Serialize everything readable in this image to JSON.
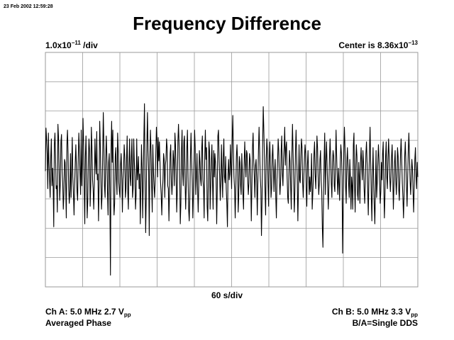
{
  "timestamp": "23 Feb 2002 12:59:28",
  "chart_data": {
    "type": "line",
    "title": "Frequency Difference",
    "y_scale": {
      "mantissa": "1.0x10",
      "exponent": "−11",
      "unit": " /div"
    },
    "center": {
      "prefix": "Center is 8.36x10",
      "exponent": "−13"
    },
    "x_scale_label": "60 s/div",
    "x_divisions": 10,
    "y_divisions": 8,
    "xlim": [
      0,
      600
    ],
    "ylim": [
      -4,
      4
    ],
    "grid": true,
    "series": [
      {
        "values": [
          -0.05,
          1.42,
          1.05,
          0.55,
          -0.65,
          1.25,
          0.25,
          -0.35,
          -0.95,
          0.45,
          1.05,
          -0.55,
          0.05,
          -0.55,
          -1.95,
          0.85,
          1.25,
          0.45,
          -0.65,
          -0.55,
          -1.45,
          1.55,
          1.1,
          0.05,
          -1.05,
          -0.45,
          0.95,
          1.2,
          -0.05,
          -0.45,
          -1.35,
          -0.85,
          0.35,
          0.25,
          -0.55,
          -1.65,
          0.85,
          1.35,
          0.55,
          -0.65,
          -1.15,
          -0.75,
          0.55,
          -0.95,
          0.05,
          1.1,
          -0.25,
          -0.85,
          -1.55,
          -0.55,
          0.25,
          0.85,
          0.05,
          -0.75,
          -1.05,
          0.35,
          1.25,
          0.65,
          -0.15,
          -0.85,
          1.35,
          -0.55,
          0.25,
          1.75,
          0.85,
          -0.65,
          -1.85,
          0.45,
          1.15,
          -0.15,
          -1.65,
          -1.05,
          0.35,
          1.05,
          0.65,
          -1.25,
          -0.55,
          1.45,
          0.75,
          -0.35,
          -0.65,
          -1.35,
          -0.55,
          1.05,
          0.25,
          -0.15,
          1.3,
          -0.35,
          -0.15,
          -1.75,
          -0.45,
          1.65,
          0.85,
          -0.35,
          -1.35,
          -0.85,
          0.55,
          1.95,
          0.85,
          -0.55,
          -0.95,
          0.35,
          1.15,
          0.45,
          -0.75,
          -1.55,
          0.25,
          0.55,
          -0.95,
          -3.6,
          0.65,
          1.65,
          0.25,
          1.35,
          -0.75,
          -1.55,
          -1.15,
          0.45,
          0.75,
          -0.35,
          -0.85,
          1.25,
          0.65,
          -0.45,
          -0.75,
          -0.95,
          0.15,
          0.55,
          -0.25,
          -1.45,
          -0.35,
          0.05,
          0.85,
          0.45,
          -0.95,
          -0.65,
          0.35,
          1.15,
          -0.75,
          -1.35,
          0.15,
          1.05,
          -0.25,
          -0.55,
          0.45,
          1.05,
          -0.95,
          -0.65,
          1.05,
          0.25,
          -0.25,
          -1.35,
          -0.85,
          1.05,
          -0.35,
          -0.05,
          0.45,
          -0.65,
          -0.15,
          -1.85,
          -0.55,
          0.85,
          0.05,
          -1.65,
          -0.45,
          1.1,
          2.25,
          -0.35,
          -2.15,
          -0.95,
          0.85,
          1.95,
          0.65,
          -0.05,
          -2.25,
          0.35,
          1.35,
          0.65,
          -0.55,
          -1.45,
          0.85,
          -0.05,
          -0.55,
          -0.95,
          -0.35,
          0.55,
          1.45,
          0.95,
          -0.25,
          1.1,
          0.3,
          0.95,
          0.25,
          -0.45,
          -0.85,
          -1.55,
          -0.75,
          -0.35,
          0.55,
          0.35,
          -0.95,
          0.15,
          0.35,
          1.05,
          0.75,
          -0.55,
          -0.65,
          -1.75,
          -0.65,
          0.55,
          0.85,
          -0.35,
          -0.85,
          -0.35,
          0.65,
          0.35,
          -0.55,
          1.25,
          0.85,
          -0.15,
          -1.45,
          -0.75,
          0.95,
          1.55,
          0.85,
          -0.15,
          -1.85,
          -1.15,
          0.65,
          1.35,
          -0.15,
          -0.55,
          0.95,
          1.15,
          -0.35,
          -1.35,
          -0.55,
          0.75,
          1.35,
          -0.25,
          -1.35,
          -1.75,
          -0.95,
          0.45,
          1.25,
          0.35,
          -0.35,
          -1.65,
          -0.85,
          0.25,
          1.35,
          0.75,
          -0.85,
          -0.25,
          0.55,
          -0.65,
          -1.45,
          -0.55,
          0.65,
          0.25,
          -0.35,
          -0.55,
          0.75,
          1.15,
          -0.35,
          -0.65,
          -1.65,
          0.45,
          1.35,
          0.35,
          0.75,
          -1.25,
          -1.75,
          -0.35,
          0.95,
          0.65,
          -1.35,
          -0.55,
          0.35,
          0.85,
          -0.45,
          -1.35,
          0.65,
          -0.25,
          0.55,
          0.25,
          -0.35,
          -1.85,
          -0.65,
          1.15,
          1.35,
          0.45,
          -0.25,
          -1.05,
          -0.35,
          0.85,
          -0.15,
          -0.95,
          0.45,
          1.05,
          -0.25,
          -0.45,
          0.45,
          -0.65,
          -1.15,
          -1.95,
          -0.15,
          0.35,
          -0.35,
          -0.15,
          0.85,
          0.05,
          -0.65,
          1.05,
          1.85,
          0.65,
          -0.25,
          -0.65,
          -1.65,
          -0.65,
          0.45,
          0.85,
          0.25,
          -1.45,
          -0.85,
          0.45,
          0.25,
          -0.55,
          -0.85,
          0.55,
          -0.05,
          -0.85,
          -1.35,
          0.15,
          0.95,
          0.25,
          -0.25,
          0.65,
          0.55,
          -0.35,
          -0.85,
          -0.45,
          0.55,
          0.35,
          -0.35,
          -1.75,
          -0.55,
          0.75,
          1.25,
          0.35,
          -0.25,
          -0.95,
          0.15,
          0.35,
          -0.35,
          -1.55,
          -0.45,
          0.65,
          1.45,
          0.65,
          -0.25,
          -0.65,
          -2.25,
          -1.05,
          0.85,
          2.15,
          1.35,
          0.45,
          -0.75,
          -1.55,
          0.35,
          1.05,
          0.65,
          -0.45,
          -1.25,
          0.25,
          0.95,
          0.15,
          -0.95,
          -0.65,
          0.45,
          0.85,
          0.05,
          -0.75,
          -0.05,
          0.35,
          -0.95,
          -1.65,
          -0.35,
          0.25,
          1.05,
          0.65,
          -0.25,
          -0.85,
          -0.45,
          0.65,
          1.15,
          -0.15,
          -0.55,
          0.35,
          0.75,
          1.45,
          0.15,
          0.75,
          0.95,
          -0.25,
          -0.95,
          -1.15,
          -0.15,
          0.65,
          0.25,
          -0.65,
          -1.35,
          0.55,
          1.55,
          0.55,
          -0.35,
          -1.45,
          -0.75,
          0.65,
          1.35,
          0.45,
          -0.35,
          -1.75,
          -0.65,
          0.85,
          -0.35,
          -0.45,
          0.45,
          1.05,
          0.75,
          -0.45,
          -0.95,
          -0.25,
          0.35,
          0.85,
          0.55,
          -0.65,
          -1.25,
          0.15,
          0.65,
          -0.15,
          -0.85,
          -0.25,
          -0.75,
          -0.35,
          0.55,
          -1.35,
          -0.85,
          -0.25,
          0.55,
          0.95,
          -0.15,
          -0.65,
          0.15,
          1.15,
          0.75,
          -0.25,
          -0.85,
          -0.45,
          0.35,
          0.65,
          -0.35,
          -0.75,
          -1.95,
          -2.65,
          -0.95,
          0.35,
          1.25,
          -0.85,
          0.25,
          0.95,
          0.15,
          -0.65,
          -1.35,
          -0.55,
          0.45,
          1.05,
          0.35,
          -0.45,
          -0.95,
          0.25,
          0.65,
          0.45,
          -0.55,
          -0.75,
          0.25,
          1.35,
          0.45,
          -0.35,
          -0.85,
          0.05,
          -0.45,
          -1.05,
          0.25,
          0.85,
          0.55,
          -0.25,
          -2.85,
          -1.25,
          0.55,
          1.45,
          0.75,
          -0.55,
          -1.15,
          0.25,
          0.75,
          0.15,
          -0.45,
          -0.95,
          0.35,
          -0.25,
          -1.35,
          -0.25,
          -0.55,
          -1.35,
          0.85,
          1.25,
          -0.55,
          -1.45,
          0.15,
          0.85,
          0.45,
          -0.85,
          -1.05,
          0.25,
          -0.25,
          -1.15,
          0.25,
          0.75,
          0.15,
          -0.35,
          0.65,
          0.25,
          -0.65,
          -1.15,
          -0.45,
          0.55,
          0.95,
          0.25,
          -0.65,
          -1.55,
          -0.35,
          0.65,
          1.45,
          0.25,
          -0.85,
          -1.75,
          -0.25,
          0.75,
          -0.35,
          -1.25,
          -1.85,
          -0.65,
          0.65,
          -0.95,
          -0.45,
          0.25,
          0.85,
          0.35,
          -0.45,
          -1.15,
          -0.75,
          0.25,
          -0.35,
          0.55,
          0.95,
          -0.55,
          -1.65,
          -0.85,
          0.45,
          0.95,
          -0.25,
          -0.65,
          0.35,
          1.05,
          0.45,
          -0.25,
          -0.75,
          -0.25,
          0.45,
          0.85,
          -0.15,
          -1.35,
          -0.55,
          0.25,
          0.65,
          -0.35,
          -0.85,
          -0.25,
          0.75,
          0.45,
          -0.65,
          -1.05,
          -0.25,
          0.55,
          1.05,
          0.35,
          -0.45,
          -0.95,
          -1.65,
          -0.85,
          0.45,
          0.95,
          0.25,
          -0.55,
          -1.25,
          -0.25,
          0.65,
          1.25,
          0.45,
          -0.35,
          -0.85,
          -0.25,
          0.35,
          0.05,
          -0.75,
          -1.45,
          -0.55,
          0.35,
          0.75,
          -0.25,
          -0.65,
          0.25,
          -0.25
        ]
      }
    ],
    "line_color": "#000000",
    "grid_color": "#999999"
  },
  "footer": {
    "left_line1_main": "Ch A: 5.0 MHz 2.7 V",
    "left_line1_sub": "pp",
    "left_line2": "Averaged Phase",
    "right_line1_main": "Ch B: 5.0 MHz 3.3 V",
    "right_line1_sub": "pp",
    "right_line2": "B/A=Single DDS"
  }
}
